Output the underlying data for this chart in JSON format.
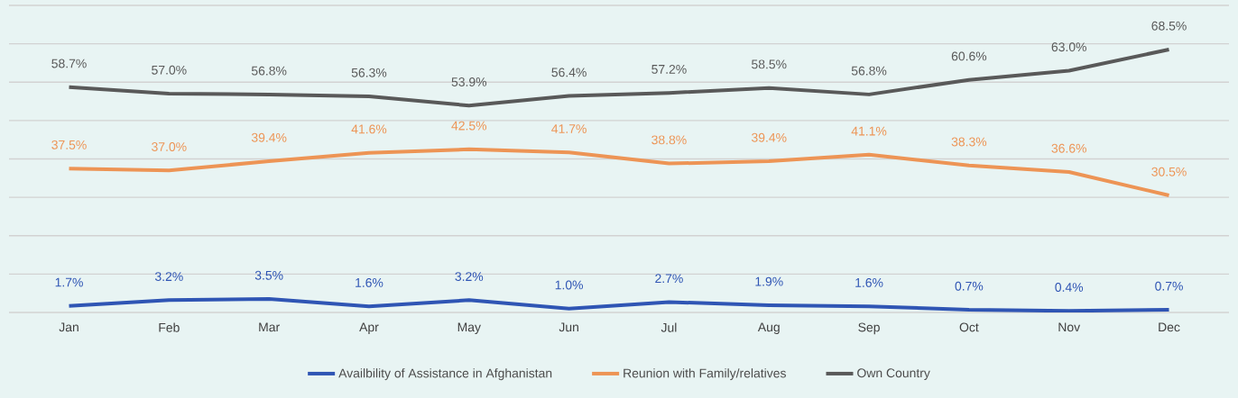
{
  "chart_data": {
    "type": "line",
    "categories": [
      "Jan",
      "Feb",
      "Mar",
      "Apr",
      "May",
      "Jun",
      "Jul",
      "Aug",
      "Sep",
      "Oct",
      "Nov",
      "Dec"
    ],
    "series": [
      {
        "name": "Availbility of Assistance in Afghanistan",
        "color": "#2f55b4",
        "values": [
          1.7,
          3.2,
          3.5,
          1.6,
          3.2,
          1.0,
          2.7,
          1.9,
          1.6,
          0.7,
          0.4,
          0.7
        ],
        "value_labels": [
          "1.7%",
          "3.2%",
          "3.5%",
          "1.6%",
          "3.2%",
          "1.0%",
          "2.7%",
          "1.9%",
          "1.6%",
          "0.7%",
          "0.4%",
          "0.7%"
        ]
      },
      {
        "name": "Reunion with Family/relatives",
        "color": "#ed9455",
        "values": [
          37.5,
          37.0,
          39.4,
          41.6,
          42.5,
          41.7,
          38.8,
          39.4,
          41.1,
          38.3,
          36.6,
          30.5
        ],
        "value_labels": [
          "37.5%",
          "37.0%",
          "39.4%",
          "41.6%",
          "42.5%",
          "41.7%",
          "38.8%",
          "39.4%",
          "41.1%",
          "38.3%",
          "36.6%",
          "30.5%"
        ]
      },
      {
        "name": "Own Country",
        "color": "#595959",
        "values": [
          58.7,
          57.0,
          56.8,
          56.3,
          53.9,
          56.4,
          57.2,
          58.5,
          56.8,
          60.6,
          63.0,
          68.5
        ],
        "value_labels": [
          "58.7%",
          "57.0%",
          "56.8%",
          "56.3%",
          "53.9%",
          "56.4%",
          "57.2%",
          "58.5%",
          "56.8%",
          "60.6%",
          "63.0%",
          "68.5%"
        ]
      }
    ],
    "ylim": [
      0,
      80
    ],
    "yticks": [
      {
        "value": 0,
        "label": null
      },
      {
        "value": 10,
        "label": null
      },
      {
        "value": 20,
        "label": null
      },
      {
        "value": 30,
        "label": null
      },
      {
        "value": 40,
        "label": null
      },
      {
        "value": 50,
        "label": null
      },
      {
        "value": 60,
        "label": null
      },
      {
        "value": 70,
        "label": null
      },
      {
        "value": 80,
        "label": null
      }
    ],
    "tick_labels": "x",
    "grid": "y",
    "legend": "bottom",
    "marker": "none",
    "line_style": "solid"
  }
}
